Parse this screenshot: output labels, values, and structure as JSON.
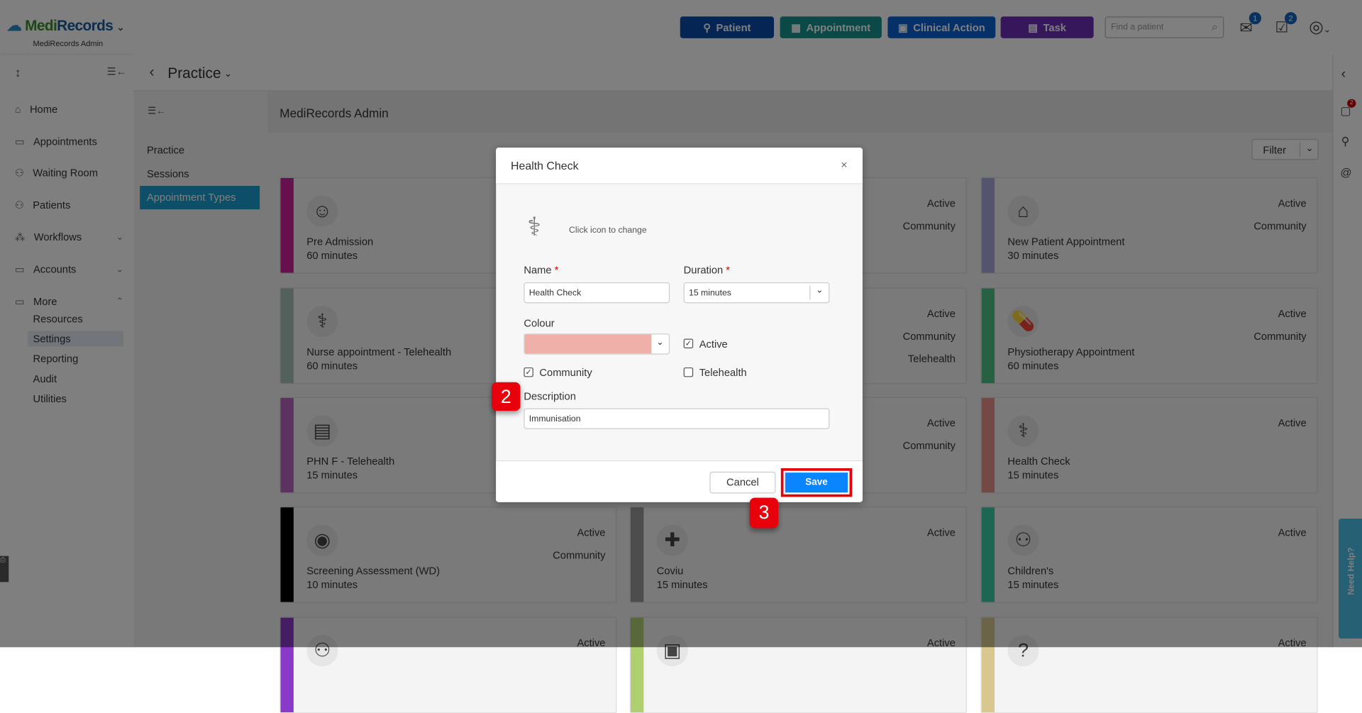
{
  "header": {
    "logo": "MediRecords",
    "logo_prefix": "Medi",
    "logo_suffix": "Records",
    "org": "MediRecords Admin",
    "buttons": [
      {
        "label": "Patient",
        "color": "#0a4aa8"
      },
      {
        "label": "Appointment",
        "color": "#14938c"
      },
      {
        "label": "Clinical Action",
        "color": "#0a62d0"
      },
      {
        "label": "Task",
        "color": "#6f2fb8"
      }
    ],
    "search_placeholder": "Find a patient",
    "mail_badge": "1",
    "tasks_badge": "2"
  },
  "sidebar": {
    "items": [
      {
        "label": "Home",
        "icon": "⌂"
      },
      {
        "label": "Appointments",
        "icon": "▭"
      },
      {
        "label": "Waiting Room",
        "icon": "⚇"
      },
      {
        "label": "Patients",
        "icon": "⚇"
      },
      {
        "label": "Workflows",
        "icon": "⁂",
        "chev": "⌄"
      },
      {
        "label": "Accounts",
        "icon": "▭",
        "chev": "⌄"
      },
      {
        "label": "More",
        "icon": "▭",
        "chev": "⌃"
      }
    ],
    "sub_items": [
      "Resources",
      "Settings",
      "Reporting",
      "Audit",
      "Utilities"
    ],
    "active_sub": "Settings"
  },
  "breadcrumb": {
    "title": "Practice"
  },
  "subnav": {
    "items": [
      "Practice",
      "Sessions",
      "Appointment Types"
    ],
    "active": "Appointment Types"
  },
  "main": {
    "title": "MediRecords Admin",
    "filter_label": "Filter"
  },
  "cards": [
    {
      "name": "Pre Admission",
      "duration": "60 minutes",
      "flags": [],
      "icon": "☺",
      "color": "#d0209a"
    },
    {
      "name": "",
      "duration": "",
      "flags": [
        "Active",
        "Community"
      ],
      "icon": "",
      "color": "#999999"
    },
    {
      "name": "New Patient Appointment",
      "duration": "30 minutes",
      "flags": [
        "Active",
        "Community"
      ],
      "icon": "⌂",
      "color": "#a8a8de"
    },
    {
      "name": "Nurse appointment - Telehealth",
      "duration": "60 minutes",
      "flags": [],
      "icon": "⚕",
      "color": "#a8c0b8"
    },
    {
      "name": "",
      "duration": "",
      "flags": [
        "Active",
        "Community",
        "Telehealth"
      ],
      "icon": "",
      "color": "#999999"
    },
    {
      "name": "Physiotherapy Appointment",
      "duration": "60 minutes",
      "flags": [
        "Active",
        "Community"
      ],
      "icon": "💊",
      "color": "#4cc388"
    },
    {
      "name": "PHN F - Telehealth",
      "duration": "15 minutes",
      "flags": [],
      "icon": "▤",
      "color": "#b866c0"
    },
    {
      "name": "",
      "duration": "",
      "flags": [
        "Active",
        "Community"
      ],
      "icon": "",
      "color": "#999999"
    },
    {
      "name": "Health Check",
      "duration": "15 minutes",
      "flags": [
        "Active"
      ],
      "icon": "⚕",
      "color": "#e89088"
    },
    {
      "name": "Screening Assessment (WD)",
      "duration": "10 minutes",
      "flags": [
        "Active",
        "Community"
      ],
      "icon": "◉",
      "color": "#000000"
    },
    {
      "name": "Coviu",
      "duration": "15 minutes",
      "flags": [
        "Active"
      ],
      "icon": "✚",
      "color": "#9a9a9a"
    },
    {
      "name": "Children's",
      "duration": "15 minutes",
      "flags": [
        "Active"
      ],
      "icon": "⚇",
      "color": "#3ccca8"
    },
    {
      "name": "",
      "duration": "",
      "flags": [
        "Active"
      ],
      "icon": "⚇",
      "color": "#8a3ac8"
    },
    {
      "name": "",
      "duration": "",
      "flags": [
        "Active"
      ],
      "icon": "▣",
      "color": "#b0d070"
    },
    {
      "name": "",
      "duration": "",
      "flags": [
        "Active"
      ],
      "icon": "?",
      "color": "#d8c890"
    }
  ],
  "rightbar": {
    "chat_badge": "2",
    "help": "Need Help?"
  },
  "modal": {
    "title": "Health Check",
    "icon_hint": "Click icon to change",
    "name_label": "Name",
    "name_value": "Health Check",
    "duration_label": "Duration",
    "duration_value": "15 minutes",
    "colour_label": "Colour",
    "colour_value": "#f0b0aa",
    "active_label": "Active",
    "active_checked": true,
    "community_label": "Community",
    "community_checked": true,
    "telehealth_label": "Telehealth",
    "telehealth_checked": false,
    "description_label": "Description",
    "description_value": "Immunisation",
    "cancel": "Cancel",
    "save": "Save",
    "required": "*"
  },
  "annotations": [
    "2",
    "3"
  ]
}
